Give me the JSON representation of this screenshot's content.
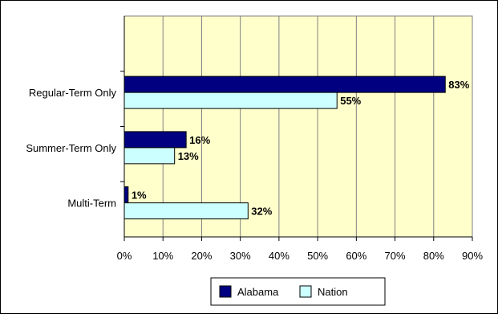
{
  "chart_data": {
    "type": "bar",
    "orientation": "horizontal",
    "categories": [
      "Regular-Term Only",
      "Summer-Term Only",
      "Multi-Term"
    ],
    "series": [
      {
        "name": "Alabama",
        "values": [
          83,
          16,
          1
        ],
        "labels": [
          "83%",
          "16%",
          "1%"
        ],
        "color": "#000080"
      },
      {
        "name": "Nation",
        "values": [
          55,
          13,
          32
        ],
        "labels": [
          "55%",
          "13%",
          "32%"
        ],
        "color": "#ccffff"
      }
    ],
    "x_ticks": [
      0,
      10,
      20,
      30,
      40,
      50,
      60,
      70,
      80,
      90
    ],
    "x_tick_labels": [
      "0%",
      "10%",
      "20%",
      "30%",
      "40%",
      "50%",
      "60%",
      "70%",
      "80%",
      "90%"
    ],
    "xlim": [
      0,
      90
    ],
    "grid": true,
    "legend": "bottom",
    "title": "",
    "xlabel": "",
    "ylabel": "",
    "plot_background": "#ffffcc"
  }
}
